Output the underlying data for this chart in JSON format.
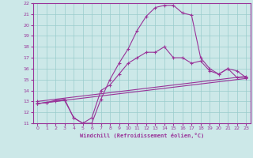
{
  "xlabel": "Windchill (Refroidissement éolien,°C)",
  "background_color": "#cce8e8",
  "grid_color": "#99cccc",
  "line_color": "#993399",
  "xlim": [
    -0.5,
    23.5
  ],
  "ylim": [
    11,
    22
  ],
  "xticks": [
    0,
    1,
    2,
    3,
    4,
    5,
    6,
    7,
    8,
    9,
    10,
    11,
    12,
    13,
    14,
    15,
    16,
    17,
    18,
    19,
    20,
    21,
    22,
    23
  ],
  "yticks": [
    11,
    12,
    13,
    14,
    15,
    16,
    17,
    18,
    19,
    20,
    21,
    22
  ],
  "line1_x": [
    0,
    1,
    2,
    3,
    4,
    5,
    6,
    7,
    8,
    9,
    10,
    11,
    12,
    13,
    14,
    15,
    16,
    17,
    18,
    19,
    20,
    21,
    22,
    23
  ],
  "line1_y": [
    12.8,
    12.9,
    13.0,
    13.1,
    11.5,
    11.0,
    11.0,
    13.2,
    15.0,
    16.5,
    17.8,
    19.5,
    20.8,
    21.6,
    21.8,
    21.8,
    21.1,
    20.9,
    17.0,
    16.0,
    15.5,
    16.0,
    15.2,
    15.2
  ],
  "line2_x": [
    0,
    1,
    2,
    3,
    4,
    5,
    6,
    7,
    8,
    9,
    10,
    11,
    12,
    13,
    14,
    15,
    16,
    17,
    18,
    19,
    20,
    21,
    22,
    23
  ],
  "line2_y": [
    12.8,
    12.9,
    13.1,
    13.2,
    11.5,
    11.0,
    11.5,
    14.0,
    14.5,
    15.5,
    16.5,
    17.0,
    17.5,
    17.5,
    18.0,
    17.0,
    17.0,
    16.5,
    16.7,
    15.8,
    15.5,
    16.0,
    15.8,
    15.2
  ],
  "line3_x": [
    0,
    23
  ],
  "line3_y": [
    13.0,
    15.3
  ],
  "line4_x": [
    0,
    23
  ],
  "line4_y": [
    12.8,
    15.1
  ]
}
